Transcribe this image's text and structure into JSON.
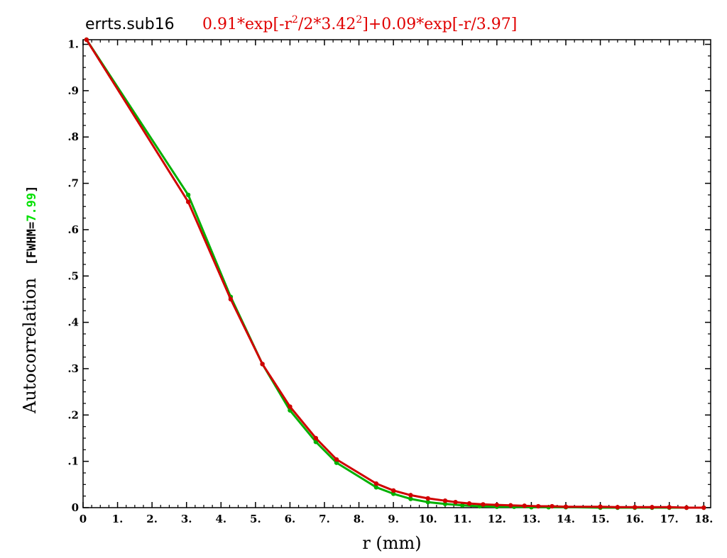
{
  "chart_data": {
    "type": "line",
    "title": "errts.sub16",
    "formula": {
      "parts": [
        {
          "t": "0.91*exp[-r"
        },
        {
          "t": "2",
          "sup": true
        },
        {
          "t": "/2*3.42"
        },
        {
          "t": "2",
          "sup": true
        },
        {
          "t": "]+0.09*exp[-r/3.97]"
        }
      ]
    },
    "xlabel": "r (mm)",
    "ylabel": "Autocorrelation",
    "fwhm": {
      "prefix": "[FWHM=",
      "value": "7.99",
      "suffix": "]"
    },
    "xlim": [
      0,
      18.2
    ],
    "ylim": [
      0,
      1.01
    ],
    "x_ticks": [
      {
        "v": 0,
        "label": "0"
      },
      {
        "v": 1,
        "label": "1."
      },
      {
        "v": 2,
        "label": "2."
      },
      {
        "v": 3,
        "label": "3."
      },
      {
        "v": 4,
        "label": "4."
      },
      {
        "v": 5,
        "label": "5."
      },
      {
        "v": 6,
        "label": "6."
      },
      {
        "v": 7,
        "label": "7."
      },
      {
        "v": 8,
        "label": "8."
      },
      {
        "v": 9,
        "label": "9."
      },
      {
        "v": 10,
        "label": "10."
      },
      {
        "v": 11,
        "label": "11."
      },
      {
        "v": 12,
        "label": "12."
      },
      {
        "v": 13,
        "label": "13."
      },
      {
        "v": 14,
        "label": "14."
      },
      {
        "v": 15,
        "label": "15."
      },
      {
        "v": 16,
        "label": "16."
      },
      {
        "v": 17,
        "label": "17."
      },
      {
        "v": 18,
        "label": "18."
      }
    ],
    "y_ticks": [
      {
        "v": 0,
        "label": "0"
      },
      {
        "v": 0.1,
        "label": ".1"
      },
      {
        "v": 0.2,
        "label": ".2"
      },
      {
        "v": 0.3,
        "label": ".3"
      },
      {
        "v": 0.4,
        "label": ".4"
      },
      {
        "v": 0.5,
        "label": ".5"
      },
      {
        "v": 0.6,
        "label": ".6"
      },
      {
        "v": 0.7,
        "label": ".7"
      },
      {
        "v": 0.8,
        "label": ".8"
      },
      {
        "v": 0.9,
        "label": ".9"
      },
      {
        "v": 1.0,
        "label": "1."
      }
    ],
    "grid": false,
    "series": [
      {
        "color": "#00b000",
        "x": [
          0.1,
          3.05,
          4.28,
          5.2,
          6.0,
          6.75,
          7.35,
          8.5,
          9.0,
          9.5,
          10.0,
          10.5,
          11.0,
          11.5,
          12.0,
          12.5,
          13.0,
          13.5,
          14.0,
          15.0,
          15.5,
          16.0,
          16.5,
          17.0,
          17.5,
          18.0
        ],
        "y": [
          1.01,
          0.675,
          0.455,
          0.31,
          0.21,
          0.142,
          0.097,
          0.044,
          0.03,
          0.019,
          0.012,
          0.008,
          0.005,
          0.003,
          0.002,
          0.002,
          0.001,
          0.001,
          0.001,
          0.0,
          0.0,
          0.0,
          0.0,
          0.0,
          0.0,
          0.0
        ]
      },
      {
        "color": "#d00000",
        "x": [
          0.1,
          3.05,
          4.28,
          5.2,
          6.0,
          6.75,
          7.35,
          8.5,
          9.0,
          9.5,
          10.0,
          10.5,
          10.8,
          11.2,
          11.6,
          12.0,
          12.4,
          12.8,
          13.2,
          13.6,
          14.0,
          15.0,
          15.5,
          16.0,
          16.5,
          17.0,
          17.5,
          18.0
        ],
        "y": [
          1.01,
          0.66,
          0.45,
          0.31,
          0.218,
          0.15,
          0.104,
          0.052,
          0.037,
          0.027,
          0.02,
          0.015,
          0.012,
          0.009,
          0.007,
          0.006,
          0.005,
          0.004,
          0.003,
          0.003,
          0.002,
          0.002,
          0.001,
          0.001,
          0.001,
          0.001,
          0.0,
          0.0
        ]
      }
    ]
  }
}
